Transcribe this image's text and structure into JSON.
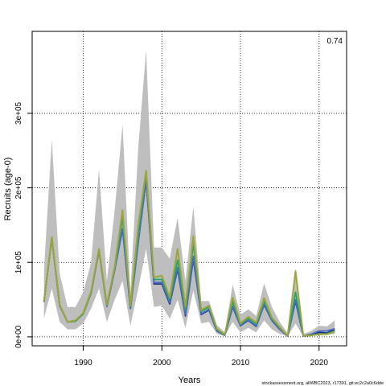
{
  "chart_data": {
    "type": "line",
    "title": "",
    "xlabel": "Years",
    "ylabel": "Recruits (age-0)",
    "xlim": [
      1983.5,
      2023.5
    ],
    "ylim": [
      -12000,
      410000
    ],
    "grid": true,
    "annotation": "0.74",
    "footer": "stockassessment.org, allWBC2023, r17391, git:ec2c2a0c6dde",
    "x_ticks": [
      "1990",
      "2000",
      "2010",
      "2020"
    ],
    "y_ticks": [
      "0e+00",
      "1e+05",
      "2e+05",
      "3e+05"
    ],
    "x": [
      1985,
      1986,
      1987,
      1988,
      1989,
      1990,
      1991,
      1992,
      1993,
      1994,
      1995,
      1996,
      1997,
      1998,
      1999,
      2000,
      2001,
      2002,
      2003,
      2004,
      2005,
      2006,
      2007,
      2008,
      2009,
      2010,
      2011,
      2012,
      2013,
      2014,
      2015,
      2016,
      2017,
      2018,
      2019,
      2020,
      2021,
      2022
    ],
    "ci_upper": [
      90000,
      265000,
      85000,
      40000,
      40000,
      60000,
      100000,
      225000,
      75000,
      170000,
      285000,
      60000,
      255000,
      385000,
      120000,
      120000,
      105000,
      160000,
      75000,
      175000,
      48000,
      48000,
      16000,
      6000,
      70000,
      30000,
      37000,
      28000,
      72000,
      40000,
      20000,
      5000,
      92000,
      4000,
      8000,
      15000,
      14000,
      22000
    ],
    "ci_lower": [
      25000,
      65000,
      20000,
      10000,
      10000,
      18000,
      38000,
      65000,
      20000,
      50000,
      75000,
      15000,
      65000,
      118000,
      40000,
      42000,
      24000,
      50000,
      12000,
      62000,
      18000,
      20000,
      4000,
      1000,
      20000,
      6000,
      12000,
      6000,
      22000,
      10000,
      4000,
      600,
      18000,
      300,
      2000,
      2000,
      3000,
      4000
    ],
    "series": [
      {
        "name": "",
        "color": "#1e2f8c",
        "values": [
          47000,
          133000,
          42000,
          20000,
          21000,
          31000,
          59000,
          116000,
          41000,
          90000,
          145000,
          38000,
          128000,
          210000,
          71000,
          71000,
          44000,
          91000,
          28000,
          105000,
          30000,
          36000,
          8000,
          2000,
          40000,
          15000,
          22000,
          14000,
          43000,
          22000,
          10000,
          1000,
          48000,
          1200,
          2500,
          6000,
          5000,
          10000
        ]
      },
      {
        "name": "",
        "color": "#4a6cc0",
        "values": [
          47000,
          133000,
          42000,
          20000,
          21000,
          31000,
          59000,
          116000,
          41000,
          90000,
          145000,
          38000,
          128000,
          210000,
          73000,
          73000,
          46000,
          93000,
          30000,
          108000,
          31000,
          37000,
          8500,
          2200,
          41000,
          15500,
          22500,
          14500,
          44000,
          22500,
          10500,
          1100,
          50000,
          1400,
          3500,
          8000,
          8000,
          11000
        ]
      },
      {
        "name": "",
        "color": "#23a36b",
        "values": [
          48000,
          133000,
          43000,
          20000,
          21000,
          31000,
          60000,
          117000,
          42000,
          92000,
          160000,
          40000,
          140000,
          222000,
          77000,
          77000,
          50000,
          103000,
          36000,
          125000,
          34000,
          40000,
          10000,
          2500,
          47000,
          17000,
          25000,
          17000,
          48000,
          24000,
          12000,
          1300,
          60000,
          1600,
          2000,
          4000,
          4000,
          8000
        ]
      },
      {
        "name": "",
        "color": "#9ba53a",
        "values": [
          48000,
          134000,
          43000,
          20000,
          22000,
          32000,
          61000,
          118000,
          43000,
          94000,
          170000,
          42000,
          150000,
          223000,
          80000,
          82000,
          53000,
          118000,
          40000,
          135000,
          36000,
          42000,
          11000,
          3000,
          53000,
          18000,
          27000,
          19000,
          52000,
          26000,
          13000,
          1400,
          88000,
          1500,
          1800,
          3500,
          3500,
          7000
        ]
      }
    ]
  }
}
